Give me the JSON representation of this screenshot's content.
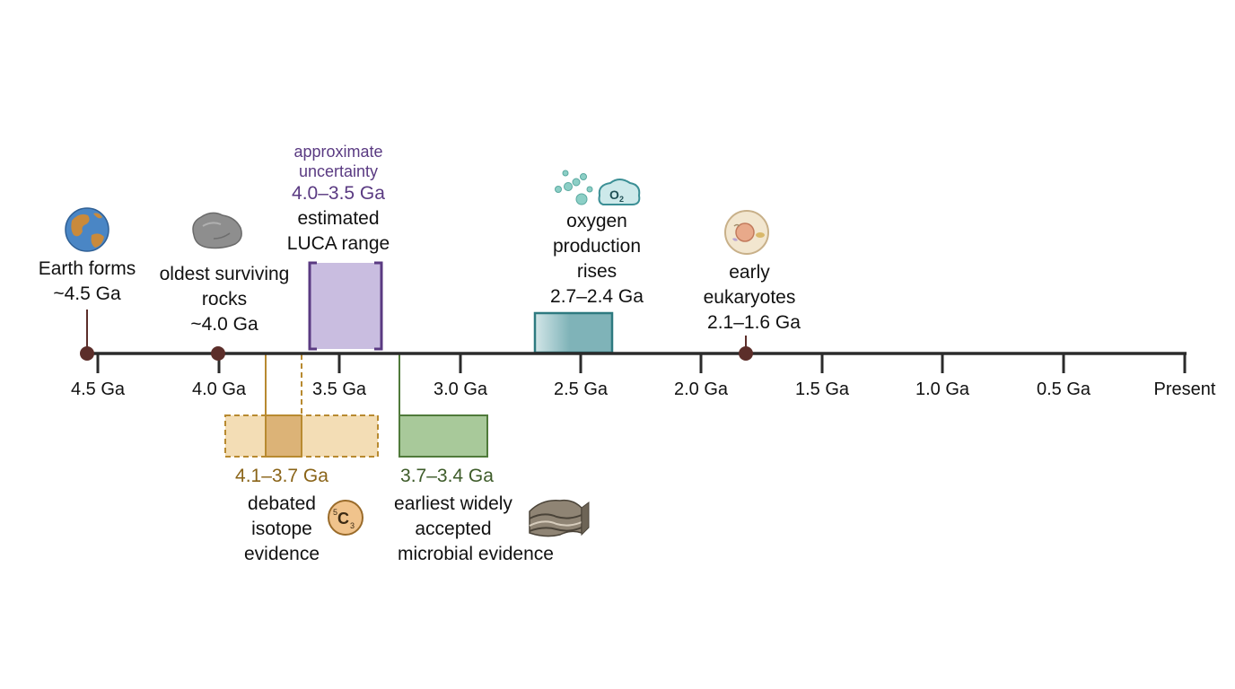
{
  "axis": {
    "ticks": [
      "4.5 Ga",
      "4.0 Ga",
      "3.5 Ga",
      "3.0 Ga",
      "2.5 Ga",
      "2.0 Ga",
      "1.5 Ga",
      "1.0 Ga",
      "0.5 Ga",
      "Present"
    ]
  },
  "events": {
    "earth": {
      "line1": "Earth forms",
      "line2": "~4.5 Ga",
      "icon": "earth-globe-icon"
    },
    "rocks": {
      "line1": "oldest surviving",
      "line2": "rocks",
      "line3": "~4.0 Ga",
      "icon": "rock-icon"
    },
    "luca": {
      "note1": "approximate",
      "note2": "uncertainty",
      "range": "4.0–3.5 Ga",
      "line1": "estimated",
      "line2": "LUCA range"
    },
    "oxygen": {
      "line1": "oxygen",
      "line2": "production",
      "line3": "rises",
      "range": "2.7–2.4 Ga",
      "icon_text": "O",
      "icon_sub": "2"
    },
    "eukaryotes": {
      "line1": "early",
      "line2": "eukaryotes",
      "range": "2.1–1.6 Ga",
      "icon": "eukaryotic-cell-icon"
    },
    "isotope": {
      "range": "4.1–3.7 Ga",
      "line1": "debated",
      "line2": "isotope",
      "line3": "evidence",
      "icon_sup": "5",
      "icon_text": "C",
      "icon_sub": "3"
    },
    "microbial": {
      "range": "3.7–3.4 Ga",
      "line1": "earliest widely",
      "line2": "accepted",
      "line3": "microbial evidence",
      "icon": "stromatolite-layers-icon"
    }
  },
  "colors": {
    "axis": "#2b2b2b",
    "marker": "#5c2e2a",
    "luca": "#c9bde0",
    "luca_border": "#5a3a82",
    "oxygen": "#7fb3b8",
    "oxygen_border": "#2e7a80",
    "isotope": "#f0d8ad",
    "isotope_border": "#b88a30",
    "microbial": "#a8c99a",
    "microbial_border": "#4f7a3a"
  }
}
